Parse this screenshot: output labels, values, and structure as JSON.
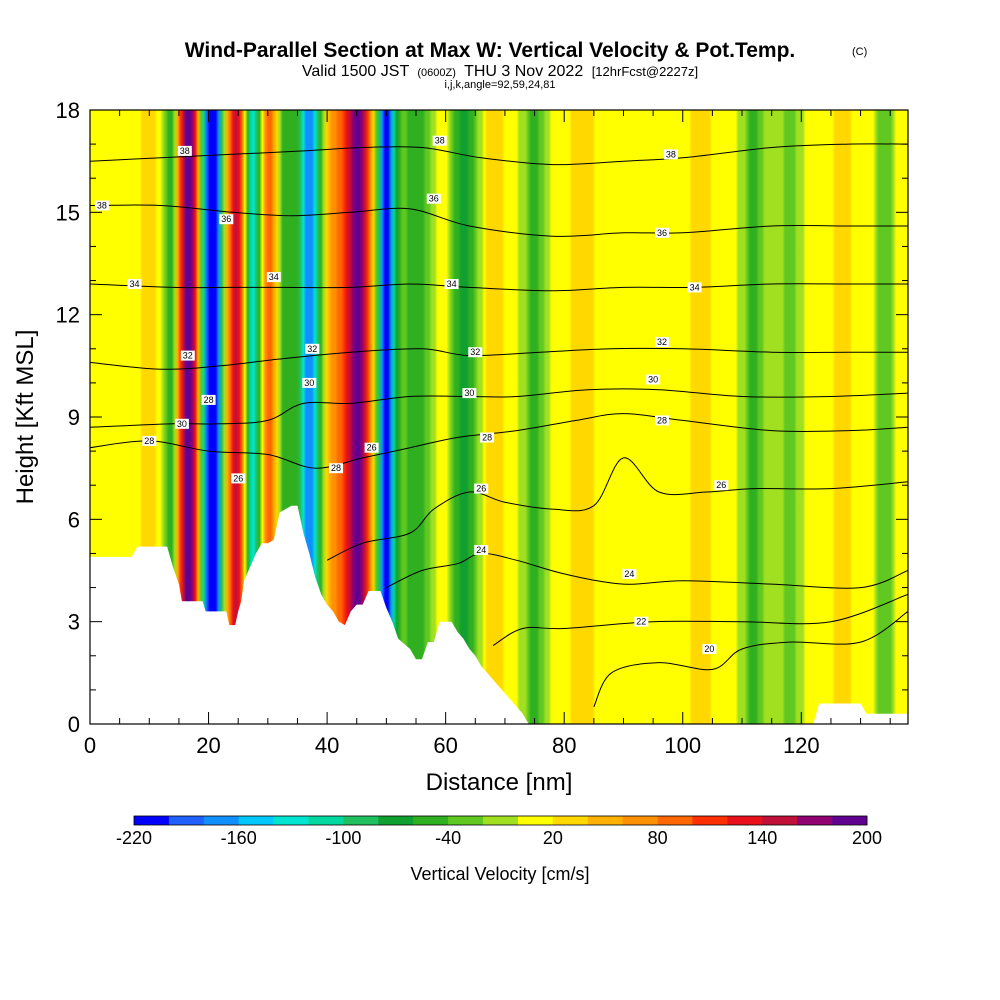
{
  "chart_data": {
    "type": "heatmap",
    "title": "Wind-Parallel Section at Max W: Vertical Velocity & Pot.Temp.",
    "title_mark": "(C)",
    "subtitle_parts": [
      "Valid 1500 JST",
      "(0600Z)",
      "THU 3 Nov 2022",
      "[12hrFcst@2227z]"
    ],
    "subtitle2": "i,j,k,angle=92,59,24,81",
    "xlabel": "Distance [nm]",
    "ylabel": "Height [Kft MSL]",
    "xlim": [
      0,
      138
    ],
    "ylim": [
      0,
      18
    ],
    "x_ticks": [
      0,
      20,
      40,
      60,
      80,
      100,
      120
    ],
    "y_ticks": [
      0,
      3,
      6,
      9,
      12,
      15,
      18
    ],
    "grid": false,
    "colorbar": {
      "label": "Vertical Velocity [cm/s]",
      "min": -220,
      "max": 200,
      "step": 20,
      "tick_labels": [
        -220,
        -160,
        -100,
        -40,
        20,
        80,
        140,
        200
      ],
      "colors": [
        "#0000ff",
        "#2060ff",
        "#1090ff",
        "#00c8ff",
        "#00e5d0",
        "#00d8a0",
        "#20c060",
        "#10a030",
        "#30b020",
        "#60c820",
        "#a0e020",
        "#ffff00",
        "#ffd800",
        "#ffb000",
        "#ff9000",
        "#ff6800",
        "#ff3000",
        "#e8101a",
        "#c0103a",
        "#900070",
        "#600090"
      ]
    },
    "vertical_velocity_bands": [
      {
        "x": 10,
        "w": 40,
        "width": 1.5
      },
      {
        "x": 14,
        "w": -90,
        "width": 1.6
      },
      {
        "x": 16.5,
        "w": 210,
        "width": 2.2
      },
      {
        "x": 19.5,
        "w": -120,
        "width": 1.4
      },
      {
        "x": 21,
        "w": -210,
        "width": 1.4
      },
      {
        "x": 24.8,
        "w": 150,
        "width": 1.8
      },
      {
        "x": 27.5,
        "w": -150,
        "width": 1.6
      },
      {
        "x": 30,
        "w": 100,
        "width": 1.8
      },
      {
        "x": 33,
        "w": -60,
        "width": 1.5
      },
      {
        "x": 37,
        "w": -180,
        "width": 1.8
      },
      {
        "x": 41,
        "w": 60,
        "width": 1.5
      },
      {
        "x": 45,
        "w": 190,
        "width": 2.5
      },
      {
        "x": 50,
        "w": -210,
        "width": 1.6
      },
      {
        "x": 55,
        "w": -60,
        "width": 2.6
      },
      {
        "x": 60,
        "w": 30,
        "width": 1.5
      },
      {
        "x": 63,
        "w": -70,
        "width": 2.6
      },
      {
        "x": 68,
        "w": 40,
        "width": 1.6
      },
      {
        "x": 75,
        "w": -45,
        "width": 2.0
      },
      {
        "x": 83,
        "w": 25,
        "width": 3.0
      },
      {
        "x": 103,
        "w": 25,
        "width": 2.5
      },
      {
        "x": 112,
        "w": -45,
        "width": 2.0
      },
      {
        "x": 118,
        "w": -30,
        "width": 2.0
      },
      {
        "x": 127,
        "w": 25,
        "width": 2.5
      },
      {
        "x": 134,
        "w": -40,
        "width": 1.5
      }
    ],
    "potential_temperature_contours": [
      {
        "value": 20,
        "points": [
          [
            85,
            0.5
          ],
          [
            88,
            1.5
          ],
          [
            96,
            1.8
          ],
          [
            105,
            1.6
          ],
          [
            110,
            2.2
          ],
          [
            118,
            2.4
          ],
          [
            130,
            2.4
          ],
          [
            138,
            3.3
          ]
        ]
      },
      {
        "value": 22,
        "points": [
          [
            68,
            2.3
          ],
          [
            73,
            2.8
          ],
          [
            80,
            2.8
          ],
          [
            95,
            3.0
          ],
          [
            110,
            3.0
          ],
          [
            125,
            3.0
          ],
          [
            138,
            3.8
          ]
        ]
      },
      {
        "value": 24,
        "points": [
          [
            50,
            4.0
          ],
          [
            56,
            4.5
          ],
          [
            62,
            4.7
          ],
          [
            66,
            5.0
          ],
          [
            72,
            4.8
          ],
          [
            80,
            4.4
          ],
          [
            90,
            4.1
          ],
          [
            100,
            4.2
          ],
          [
            115,
            4.1
          ],
          [
            130,
            4.0
          ],
          [
            138,
            4.5
          ]
        ]
      },
      {
        "value": 26,
        "points": [
          [
            40,
            4.8
          ],
          [
            46,
            5.3
          ],
          [
            54,
            5.6
          ],
          [
            58,
            6.3
          ],
          [
            64,
            6.8
          ],
          [
            70,
            6.5
          ],
          [
            78,
            6.3
          ],
          [
            85,
            6.4
          ],
          [
            90,
            7.8
          ],
          [
            96,
            6.8
          ],
          [
            104,
            6.8
          ],
          [
            112,
            6.9
          ],
          [
            125,
            6.9
          ],
          [
            138,
            7.1
          ]
        ]
      },
      {
        "value": 28,
        "points": [
          [
            0,
            8.1
          ],
          [
            10,
            8.3
          ],
          [
            20,
            8.0
          ],
          [
            30,
            7.9
          ],
          [
            38,
            7.5
          ],
          [
            46,
            7.8
          ],
          [
            54,
            8.1
          ],
          [
            62,
            8.4
          ],
          [
            72,
            8.6
          ],
          [
            82,
            8.9
          ],
          [
            90,
            9.1
          ],
          [
            100,
            8.9
          ],
          [
            115,
            8.6
          ],
          [
            128,
            8.6
          ],
          [
            138,
            8.7
          ]
        ]
      },
      {
        "value": 30,
        "points": [
          [
            0,
            8.7
          ],
          [
            14,
            8.8
          ],
          [
            22,
            8.8
          ],
          [
            30,
            8.9
          ],
          [
            36,
            9.4
          ],
          [
            44,
            9.4
          ],
          [
            54,
            9.6
          ],
          [
            64,
            9.6
          ],
          [
            72,
            9.6
          ],
          [
            84,
            9.8
          ],
          [
            96,
            9.8
          ],
          [
            110,
            9.6
          ],
          [
            125,
            9.6
          ],
          [
            138,
            9.7
          ]
        ]
      },
      {
        "value": 32,
        "points": [
          [
            0,
            10.6
          ],
          [
            12,
            10.4
          ],
          [
            22,
            10.5
          ],
          [
            32,
            10.7
          ],
          [
            44,
            10.9
          ],
          [
            56,
            11.0
          ],
          [
            64,
            10.8
          ],
          [
            76,
            10.9
          ],
          [
            88,
            11.0
          ],
          [
            100,
            11.0
          ],
          [
            115,
            10.9
          ],
          [
            128,
            10.9
          ],
          [
            138,
            10.9
          ]
        ]
      },
      {
        "value": 34,
        "points": [
          [
            0,
            12.9
          ],
          [
            14,
            12.8
          ],
          [
            24,
            12.8
          ],
          [
            32,
            12.8
          ],
          [
            44,
            12.8
          ],
          [
            54,
            12.9
          ],
          [
            64,
            12.8
          ],
          [
            78,
            12.7
          ],
          [
            90,
            12.8
          ],
          [
            102,
            12.8
          ],
          [
            115,
            12.9
          ],
          [
            128,
            12.9
          ],
          [
            138,
            12.9
          ]
        ]
      },
      {
        "value": 36,
        "points": [
          [
            0,
            15.2
          ],
          [
            12,
            15.2
          ],
          [
            24,
            15.0
          ],
          [
            34,
            14.9
          ],
          [
            44,
            15.0
          ],
          [
            54,
            15.1
          ],
          [
            64,
            14.6
          ],
          [
            78,
            14.3
          ],
          [
            90,
            14.4
          ],
          [
            100,
            14.4
          ],
          [
            115,
            14.6
          ],
          [
            128,
            14.6
          ],
          [
            138,
            14.6
          ]
        ]
      },
      {
        "value": 38,
        "points": [
          [
            0,
            16.5
          ],
          [
            12,
            16.6
          ],
          [
            24,
            16.7
          ],
          [
            36,
            16.8
          ],
          [
            46,
            16.9
          ],
          [
            56,
            16.9
          ],
          [
            66,
            16.6
          ],
          [
            78,
            16.4
          ],
          [
            90,
            16.5
          ],
          [
            100,
            16.6
          ],
          [
            115,
            16.9
          ],
          [
            128,
            17.0
          ],
          [
            138,
            17.0
          ]
        ]
      }
    ],
    "contour_labels": [
      {
        "text": "38",
        "x": 2,
        "y": 15.2
      },
      {
        "text": "38",
        "x": 16,
        "y": 16.8
      },
      {
        "text": "36",
        "x": 23,
        "y": 14.8
      },
      {
        "text": "34",
        "x": 7.5,
        "y": 12.9
      },
      {
        "text": "34",
        "x": 31,
        "y": 13.1
      },
      {
        "text": "32",
        "x": 16.5,
        "y": 10.8
      },
      {
        "text": "30",
        "x": 15.5,
        "y": 8.8
      },
      {
        "text": "28",
        "x": 10,
        "y": 8.3
      },
      {
        "text": "28",
        "x": 20,
        "y": 9.5
      },
      {
        "text": "26",
        "x": 25,
        "y": 7.2
      },
      {
        "text": "32",
        "x": 37.5,
        "y": 11.0
      },
      {
        "text": "30",
        "x": 37,
        "y": 10.0
      },
      {
        "text": "28",
        "x": 41.5,
        "y": 7.5
      },
      {
        "text": "26",
        "x": 47.5,
        "y": 8.1
      },
      {
        "text": "38",
        "x": 59,
        "y": 17.1
      },
      {
        "text": "36",
        "x": 58,
        "y": 15.4
      },
      {
        "text": "34",
        "x": 61,
        "y": 12.9
      },
      {
        "text": "32",
        "x": 65,
        "y": 10.9
      },
      {
        "text": "30",
        "x": 64,
        "y": 9.7
      },
      {
        "text": "28",
        "x": 67,
        "y": 8.4
      },
      {
        "text": "26",
        "x": 66,
        "y": 6.9
      },
      {
        "text": "24",
        "x": 66,
        "y": 5.1
      },
      {
        "text": "38",
        "x": 98,
        "y": 16.7
      },
      {
        "text": "36",
        "x": 96.5,
        "y": 14.4
      },
      {
        "text": "34",
        "x": 102,
        "y": 12.8
      },
      {
        "text": "32",
        "x": 96.5,
        "y": 11.2
      },
      {
        "text": "30",
        "x": 95,
        "y": 10.1
      },
      {
        "text": "28",
        "x": 96.5,
        "y": 8.9
      },
      {
        "text": "26",
        "x": 106.5,
        "y": 7.0
      },
      {
        "text": "24",
        "x": 91,
        "y": 4.4
      },
      {
        "text": "22",
        "x": 93,
        "y": 3.0
      },
      {
        "text": "20",
        "x": 104.5,
        "y": 2.2
      }
    ],
    "terrain": [
      [
        0,
        4.9
      ],
      [
        7,
        4.9
      ],
      [
        8,
        5.2
      ],
      [
        13,
        5.2
      ],
      [
        14,
        4.6
      ],
      [
        15,
        4.1
      ],
      [
        15.5,
        3.6
      ],
      [
        19,
        3.6
      ],
      [
        19.5,
        3.3
      ],
      [
        23,
        3.3
      ],
      [
        23.5,
        2.9
      ],
      [
        24.5,
        2.9
      ],
      [
        25,
        3.3
      ],
      [
        25.5,
        3.6
      ],
      [
        26,
        4.2
      ],
      [
        27,
        4.6
      ],
      [
        28,
        5.0
      ],
      [
        29,
        5.3
      ],
      [
        30,
        5.3
      ],
      [
        31,
        5.4
      ],
      [
        32,
        6.2
      ],
      [
        34,
        6.4
      ],
      [
        35,
        6.4
      ],
      [
        36,
        5.6
      ],
      [
        37,
        5.0
      ],
      [
        38,
        4.3
      ],
      [
        39,
        3.8
      ],
      [
        40,
        3.5
      ],
      [
        41,
        3.3
      ],
      [
        42,
        3.0
      ],
      [
        43,
        2.9
      ],
      [
        44,
        3.3
      ],
      [
        45,
        3.5
      ],
      [
        46,
        3.5
      ],
      [
        47,
        3.9
      ],
      [
        49,
        3.9
      ],
      [
        50,
        3.4
      ],
      [
        51,
        3.0
      ],
      [
        52,
        2.5
      ],
      [
        54,
        2.2
      ],
      [
        55,
        1.9
      ],
      [
        56,
        1.9
      ],
      [
        57,
        2.4
      ],
      [
        58,
        2.4
      ],
      [
        59,
        3.0
      ],
      [
        61,
        3.0
      ],
      [
        62,
        2.7
      ],
      [
        63,
        2.5
      ],
      [
        64,
        2.2
      ],
      [
        65,
        2.0
      ],
      [
        66,
        1.7
      ],
      [
        67,
        1.5
      ],
      [
        68,
        1.3
      ],
      [
        69,
        1.1
      ],
      [
        70,
        0.9
      ],
      [
        71,
        0.7
      ],
      [
        72,
        0.5
      ],
      [
        73,
        0.3
      ],
      [
        74,
        0.0
      ],
      [
        122,
        0.0
      ],
      [
        123,
        0.6
      ],
      [
        130,
        0.6
      ],
      [
        131,
        0.3
      ],
      [
        138,
        0.3
      ]
    ]
  }
}
